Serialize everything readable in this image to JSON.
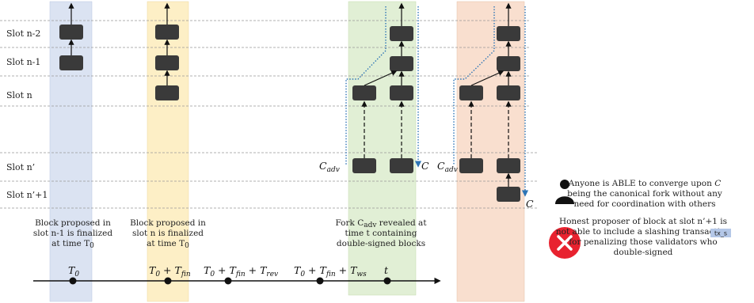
{
  "slots": {
    "n_minus_2": "Slot n-2",
    "n_minus_1": "Slot n-1",
    "n": "Slot n",
    "n_prime": "Slot n’",
    "n_prime_plus_1": "Slot n’+1"
  },
  "captions": {
    "col1": [
      "Block proposed in",
      "slot n-1 is finalized",
      "at time T0"
    ],
    "col2": [
      "Block proposed in",
      "slot n is finalized",
      "at time T0"
    ],
    "col3": [
      "Fork Cadv revealed at",
      "time t containing",
      "double-signed blocks"
    ]
  },
  "timeline": {
    "t0": "T0",
    "t0_fin": "T0 + Tfin",
    "t0_fin_rev": "T0 + Tfin + Trev",
    "t0_fin_ws": "T0 + Tfin + Tws",
    "t": "t"
  },
  "math_labels": {
    "c_adv": "Cadv",
    "c": "C"
  },
  "legend": {
    "user_text": [
      "Anyone is ABLE to converge upon C",
      "being the canonical fork without any",
      "need for coordination with others"
    ],
    "x_text": [
      "Honest proposer of block at slot n’+1 is",
      "not able to include a slashing transaction",
      "for penalizing those validators who",
      "double-signed"
    ],
    "badge": "tx_s"
  },
  "icons": {
    "user": "user-icon",
    "reject": "x-circle-icon"
  },
  "colors": {
    "blue_band": "#dbe3f2",
    "yellow_band": "#fdefc6",
    "green_band": "#e1efd5",
    "orange_band": "#f9dfcf",
    "block": "#3a3a3a",
    "fork_dotted": "#2e75b6",
    "reject_red": "#e8222f"
  }
}
